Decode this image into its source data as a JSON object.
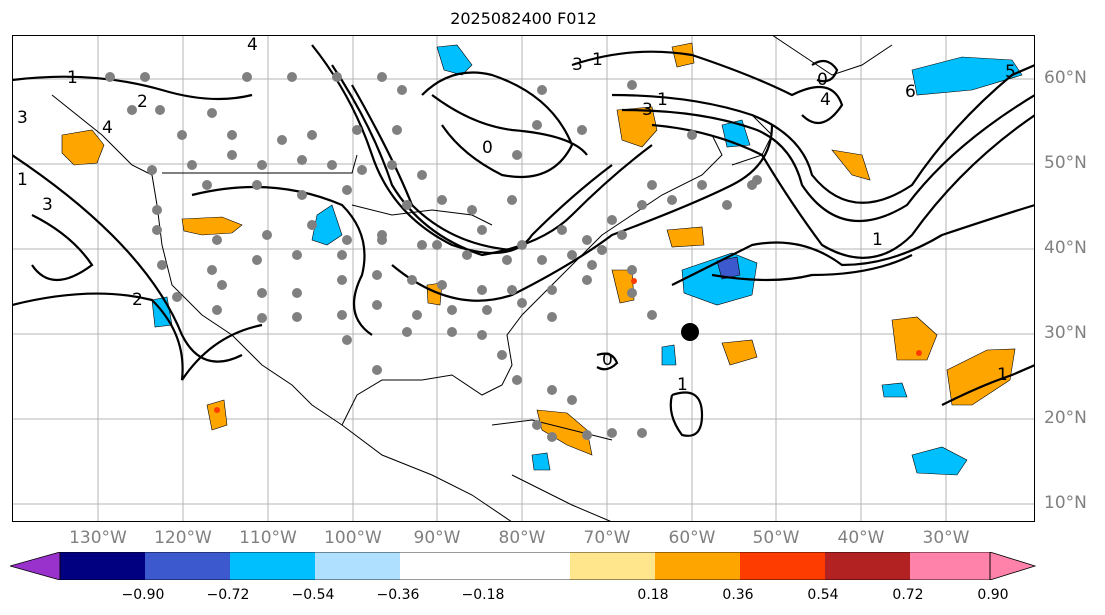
{
  "title": "2025082400 F012",
  "lat_labels": [
    "60°N",
    "50°N",
    "40°N",
    "30°N",
    "20°N",
    "10°N"
  ],
  "lon_labels": [
    "130°W",
    "120°W",
    "110°W",
    "100°W",
    "90°W",
    "80°W",
    "70°W",
    "60°W",
    "50°W",
    "40°W",
    "30°W"
  ],
  "colorbar": {
    "ticks": [
      "−0.90",
      "−0.72",
      "−0.54",
      "−0.36",
      "−0.18",
      "0.18",
      "0.36",
      "0.54",
      "0.72",
      "0.90"
    ],
    "colors": [
      "#9932cc",
      "#000080",
      "#3c5acd",
      "#00bfff",
      "#b0e0ff",
      "#ffffff",
      "#ffe68c",
      "#ffa500",
      "#ff3c00",
      "#b22222",
      "#ff82ab"
    ]
  },
  "contour_labels": [
    "1",
    "1",
    "2",
    "3",
    "3",
    "2",
    "4",
    "3",
    "3",
    "4",
    "0",
    "1",
    "1",
    "1",
    "5",
    "6",
    "4",
    "0",
    "0",
    "1",
    "1"
  ],
  "marker": {
    "lon": -60,
    "lat": 30
  }
}
